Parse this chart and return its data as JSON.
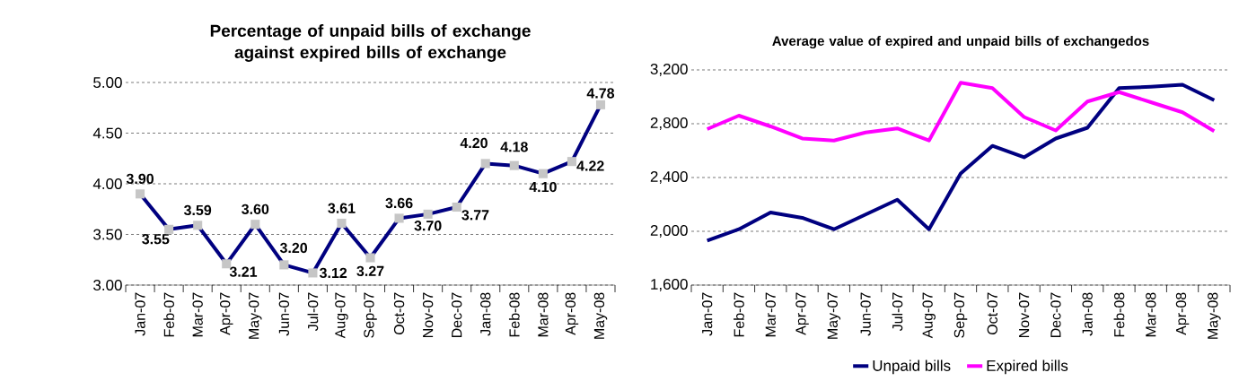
{
  "chart_data": [
    {
      "type": "line",
      "title": "Percentage of unpaid bills of exchange against expired bills of exchange",
      "categories": [
        "Jan-07",
        "Feb-07",
        "Mar-07",
        "Apr-07",
        "May-07",
        "Jun-07",
        "Jul-07",
        "Aug-07",
        "Sep-07",
        "Oct-07",
        "Nov-07",
        "Dec-07",
        "Jan-08",
        "Feb-08",
        "Mar-08",
        "Apr-08",
        "May-08"
      ],
      "series": [
        {
          "color": "#000080",
          "values": [
            3.9,
            3.55,
            3.59,
            3.21,
            3.6,
            3.2,
            3.12,
            3.61,
            3.27,
            3.66,
            3.7,
            3.77,
            4.2,
            4.18,
            4.1,
            4.22,
            4.78
          ],
          "value_labels": [
            "3.90",
            "3.55",
            "3.59",
            "3.21",
            "3.60",
            "3.20",
            "3.12",
            "3.61",
            "3.27",
            "3.66",
            "3.70",
            "3.77",
            "4.20",
            "4.18",
            "4.10",
            "4.22",
            "4.78"
          ]
        }
      ],
      "ylim": [
        3.0,
        5.0
      ],
      "yticks": [
        {
          "value": 3.0,
          "label": "3.00"
        },
        {
          "value": 3.5,
          "label": "3.50"
        },
        {
          "value": 4.0,
          "label": "4.00"
        },
        {
          "value": 4.5,
          "label": "4.50"
        },
        {
          "value": 5.0,
          "label": "5.00"
        }
      ],
      "grid": "y",
      "marker": "square",
      "legend": false
    },
    {
      "type": "line",
      "title": "Average value of expired and unpaid bills of exchangedos",
      "categories": [
        "Jan-07",
        "Feb-07",
        "Mar-07",
        "Apr-07",
        "May-07",
        "Jun-07",
        "Jul-07",
        "Aug-07",
        "Sep-07",
        "Oct-07",
        "Nov-07",
        "Dec-07",
        "Jan-08",
        "Feb-08",
        "Mar-08",
        "Apr-08",
        "May-08"
      ],
      "series": [
        {
          "name": "Unpaid bills",
          "color": "#000080",
          "values": [
            1930,
            2015,
            2140,
            2100,
            2015,
            2125,
            2235,
            2015,
            2430,
            2635,
            2550,
            2690,
            2770,
            3065,
            3075,
            3090,
            2975
          ]
        },
        {
          "name": "Expired bills",
          "color": "#ff00ff",
          "values": [
            2760,
            2860,
            2780,
            2690,
            2675,
            2735,
            2765,
            2675,
            3105,
            3065,
            2850,
            2750,
            2965,
            3035,
            2960,
            2885,
            2745
          ]
        }
      ],
      "ylim": [
        1600,
        3200
      ],
      "yticks": [
        {
          "value": 1600,
          "label": "1,600"
        },
        {
          "value": 2000,
          "label": "2,000"
        },
        {
          "value": 2400,
          "label": "2,400"
        },
        {
          "value": 2800,
          "label": "2,800"
        },
        {
          "value": 3200,
          "label": "3,200"
        }
      ],
      "grid": "y",
      "marker": "none",
      "legend": "bottom"
    }
  ]
}
